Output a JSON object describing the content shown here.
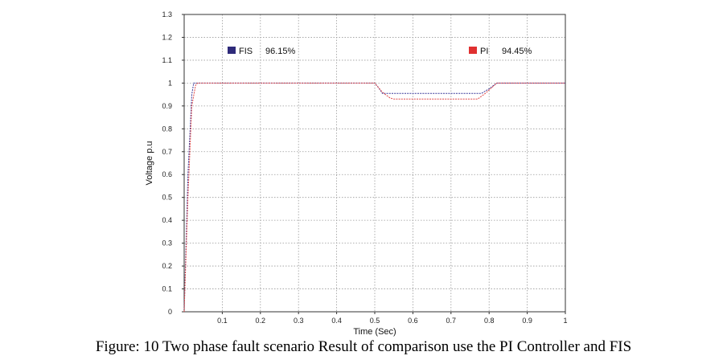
{
  "caption": "Figure: 10 Two phase fault scenario Result of comparison use the PI Controller and FIS",
  "chart_data": {
    "type": "line",
    "title": "",
    "xlabel": "Time (Sec)",
    "ylabel": "Voltage p.u",
    "xlim": [
      0,
      1
    ],
    "ylim": [
      0,
      1.3
    ],
    "x_ticks": [
      "0.1",
      "0.2",
      "0.3",
      "0.4",
      "0.5",
      "0.6",
      "0.7",
      "0.8",
      "0.9",
      "1"
    ],
    "y_ticks": [
      "0",
      "0.1",
      "0.2",
      "0.3",
      "0.4",
      "0.5",
      "0.6",
      "0.7",
      "0.8",
      "0.9",
      "1",
      "1.1",
      "1.2",
      "1.3"
    ],
    "grid": true,
    "legend": [
      {
        "name": "FIS",
        "value": "96.15%",
        "color": "#2e2a7a",
        "placement": "top-left"
      },
      {
        "name": "PI",
        "value": "94.45%",
        "color": "#e03030",
        "placement": "top-right"
      }
    ],
    "series": [
      {
        "name": "FIS",
        "color": "#3a3a9a",
        "x": [
          0,
          0.01,
          0.02,
          0.025,
          0.03,
          0.5,
          0.51,
          0.52,
          0.78,
          0.8,
          0.82,
          1.0
        ],
        "y": [
          0,
          0.6,
          0.95,
          1.0,
          1.0,
          1.0,
          0.98,
          0.955,
          0.955,
          0.975,
          1.0,
          1.0
        ]
      },
      {
        "name": "PI",
        "color": "#e04848",
        "x": [
          0,
          0.01,
          0.02,
          0.03,
          0.035,
          0.5,
          0.52,
          0.54,
          0.55,
          0.77,
          0.79,
          0.81,
          0.82,
          1.0
        ],
        "y": [
          0,
          0.5,
          0.9,
          0.99,
          1.0,
          1.0,
          0.96,
          0.935,
          0.93,
          0.93,
          0.955,
          0.985,
          1.0,
          1.0
        ]
      }
    ]
  }
}
